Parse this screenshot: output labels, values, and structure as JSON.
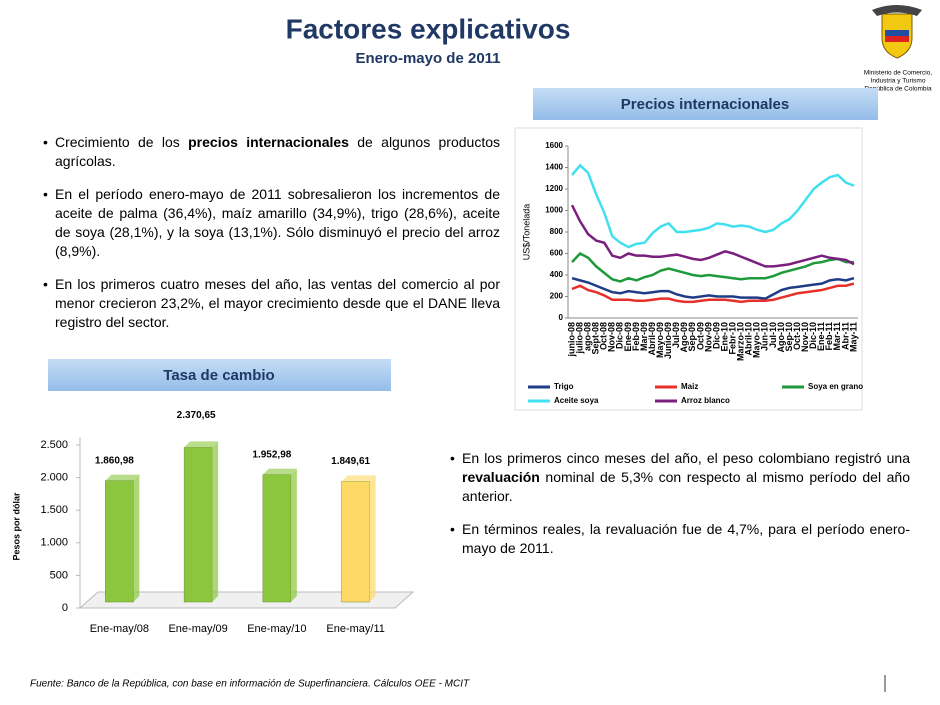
{
  "header": {
    "title": "Factores explicativos",
    "subtitle": "Enero-mayo de 2011"
  },
  "logo": {
    "lines": [
      "Ministerio de Comercio,",
      "Industria y Turismo",
      "República de Colombia"
    ]
  },
  "section_titles": [
    "Precios internacionales",
    "Tasa de cambio"
  ],
  "bullets_left": [
    [
      {
        "text": "Crecimiento de los "
      },
      {
        "text": "precios internacionales",
        "bold": true
      },
      {
        "text": " de algunos productos agrícolas."
      }
    ],
    [
      {
        "text": "En el período enero-mayo de 2011 sobresalieron los incrementos de aceite de palma (36,4%), maíz amarillo (34,9%), trigo (28,6%), aceite de soya (28,1%), y la soya (13,1%). Sólo disminuyó el precio del arroz (8,9%)."
      }
    ],
    [
      {
        "text": "En los primeros cuatro meses del año, las ventas del comercio al por menor crecieron 23,2%, el mayor crecimiento desde que el DANE lleva registro  del sector."
      }
    ]
  ],
  "bullets_right": [
    [
      {
        "text": "En los primeros cinco meses del año, el peso colombiano registró una "
      },
      {
        "text": "revaluación",
        "bold": true
      },
      {
        "text": " nominal de 5,3% con respecto al mismo período del año anterior."
      }
    ],
    [
      {
        "text": "En términos reales, la revaluación fue de 4,7%, para el período enero-mayo de 2011."
      }
    ]
  ],
  "footer": "Fuente: Banco de la República, con base en información de Superfinanciera. Cálculos OEE - MCIT",
  "chart_data": [
    {
      "type": "line",
      "y_label": "US$/Tonelada",
      "categories": [
        "junio-08",
        "julio-08",
        "ago-08",
        "Sept-08",
        "Oct-08",
        "Nov-08",
        "Dic-08",
        "Ene-09",
        "Feb-09",
        "Mar-09",
        "Abril-09",
        "Mayo-09",
        "Junio-09",
        "Jul-09",
        "Ago-09",
        "Sep-09",
        "Oct-09",
        "Nov-09",
        "Dic-09",
        "Ene-10",
        "Febr-10",
        "Marzo-10",
        "Abril-10",
        "Mayo-10",
        "Jun-10",
        "Jul-10",
        "Ago-10",
        "Sep-10",
        "Oct-10",
        "Nov-10",
        "Dic-10",
        "Ene-11",
        "Feb-11",
        "Mar-11",
        "Abr-11",
        "May-11"
      ],
      "ylim": [
        0,
        1600
      ],
      "yticks": [
        0,
        200,
        400,
        600,
        800,
        1000,
        1200,
        1400,
        1600
      ],
      "series": [
        {
          "name": "Trigo",
          "color": "#1f3c88",
          "values": [
            370,
            350,
            330,
            300,
            270,
            240,
            230,
            250,
            240,
            230,
            240,
            250,
            250,
            220,
            200,
            190,
            200,
            210,
            200,
            200,
            200,
            190,
            190,
            190,
            180,
            220,
            260,
            280,
            290,
            300,
            310,
            320,
            350,
            360,
            350,
            370
          ]
        },
        {
          "name": "Maiz",
          "color": "#e8302a",
          "values": [
            270,
            300,
            260,
            240,
            210,
            170,
            170,
            170,
            160,
            160,
            170,
            180,
            180,
            160,
            150,
            150,
            160,
            170,
            170,
            170,
            160,
            150,
            160,
            160,
            160,
            170,
            190,
            210,
            230,
            240,
            250,
            260,
            280,
            300,
            300,
            320
          ]
        },
        {
          "name": "Soya en grano",
          "color": "#1e9a3a",
          "values": [
            520,
            600,
            560,
            480,
            420,
            360,
            340,
            370,
            350,
            380,
            400,
            440,
            460,
            440,
            420,
            400,
            390,
            400,
            390,
            380,
            370,
            360,
            370,
            370,
            370,
            390,
            420,
            440,
            460,
            480,
            510,
            520,
            540,
            550,
            520,
            520
          ]
        },
        {
          "name": "Aceite soya",
          "color": "#40e0f0",
          "values": [
            1330,
            1420,
            1350,
            1150,
            980,
            760,
            700,
            660,
            690,
            700,
            790,
            850,
            880,
            800,
            800,
            810,
            820,
            840,
            880,
            870,
            850,
            860,
            850,
            820,
            800,
            820,
            880,
            920,
            1000,
            1100,
            1200,
            1260,
            1310,
            1330,
            1260,
            1230
          ]
        },
        {
          "name": "Arroz blanco",
          "color": "#7b1f7e",
          "values": [
            1050,
            900,
            780,
            720,
            700,
            580,
            560,
            600,
            580,
            580,
            570,
            570,
            580,
            590,
            570,
            550,
            540,
            560,
            590,
            620,
            600,
            570,
            540,
            510,
            480,
            480,
            490,
            500,
            520,
            540,
            560,
            580,
            560,
            550,
            540,
            500
          ]
        }
      ]
    },
    {
      "type": "bar3d",
      "y_label": "Pesos por dólar",
      "categories": [
        "Ene-may/08",
        "Ene-may/09",
        "Ene-may/10",
        "Ene-may/11"
      ],
      "values": [
        1860.98,
        2370.65,
        1952.98,
        1849.61
      ],
      "value_labels": [
        "1.860,98",
        "2.370,65",
        "1.952,98",
        "1.849,61"
      ],
      "colors": [
        "#8cc63f",
        "#8cc63f",
        "#8cc63f",
        "#ffd966"
      ],
      "ylim": [
        0,
        2500
      ],
      "yticks": [
        0,
        {
          "value": 500,
          "label": "500"
        },
        {
          "value": 1000,
          "label": "1.000"
        },
        {
          "value": 1500,
          "label": "1.500"
        },
        {
          "value": 2000,
          "label": "2.000"
        },
        {
          "value": 2500,
          "label": "2.500"
        }
      ]
    }
  ]
}
